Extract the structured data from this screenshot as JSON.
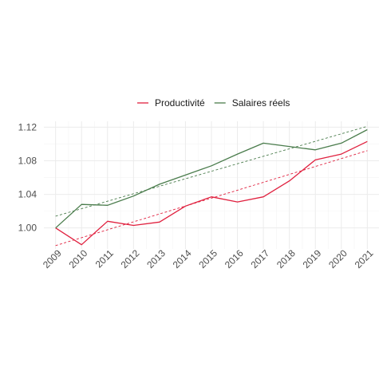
{
  "chart_data": {
    "type": "line",
    "title": "",
    "xlabel": "",
    "ylabel": "",
    "x_tick_labels": [
      "2009",
      "2010",
      "2011",
      "2012",
      "2013",
      "2014",
      "2015",
      "2016",
      "2017",
      "2018",
      "2019",
      "2020",
      "2021"
    ],
    "y_tick_labels": [
      "1.00",
      "1.04",
      "1.08",
      "1.12"
    ],
    "y_ticks": [
      1.0,
      1.04,
      1.08,
      1.12
    ],
    "xlim": [
      2008.55,
      2021.45
    ],
    "ylim": [
      0.975,
      1.127
    ],
    "grid": true,
    "legend": "top",
    "series": [
      {
        "name": "Productivité",
        "color": "#e0213f",
        "x": [
          2009,
          2010,
          2011,
          2012,
          2013,
          2014,
          2015,
          2016,
          2017,
          2018,
          2019,
          2020,
          2021
        ],
        "y": [
          1.0,
          0.98,
          1.008,
          1.003,
          1.007,
          1.026,
          1.037,
          1.031,
          1.037,
          1.056,
          1.081,
          1.088,
          1.103
        ],
        "trend": [
          0.979,
          1.092
        ]
      },
      {
        "name": "Salaires réels",
        "color": "#4a7c4c",
        "x": [
          2009,
          2010,
          2011,
          2012,
          2013,
          2014,
          2015,
          2016,
          2017,
          2018,
          2019,
          2020,
          2021
        ],
        "y": [
          1.0,
          1.028,
          1.027,
          1.038,
          1.052,
          1.063,
          1.074,
          1.088,
          1.101,
          1.097,
          1.093,
          1.101,
          1.117
        ],
        "trend": [
          1.014,
          1.121
        ]
      }
    ]
  }
}
